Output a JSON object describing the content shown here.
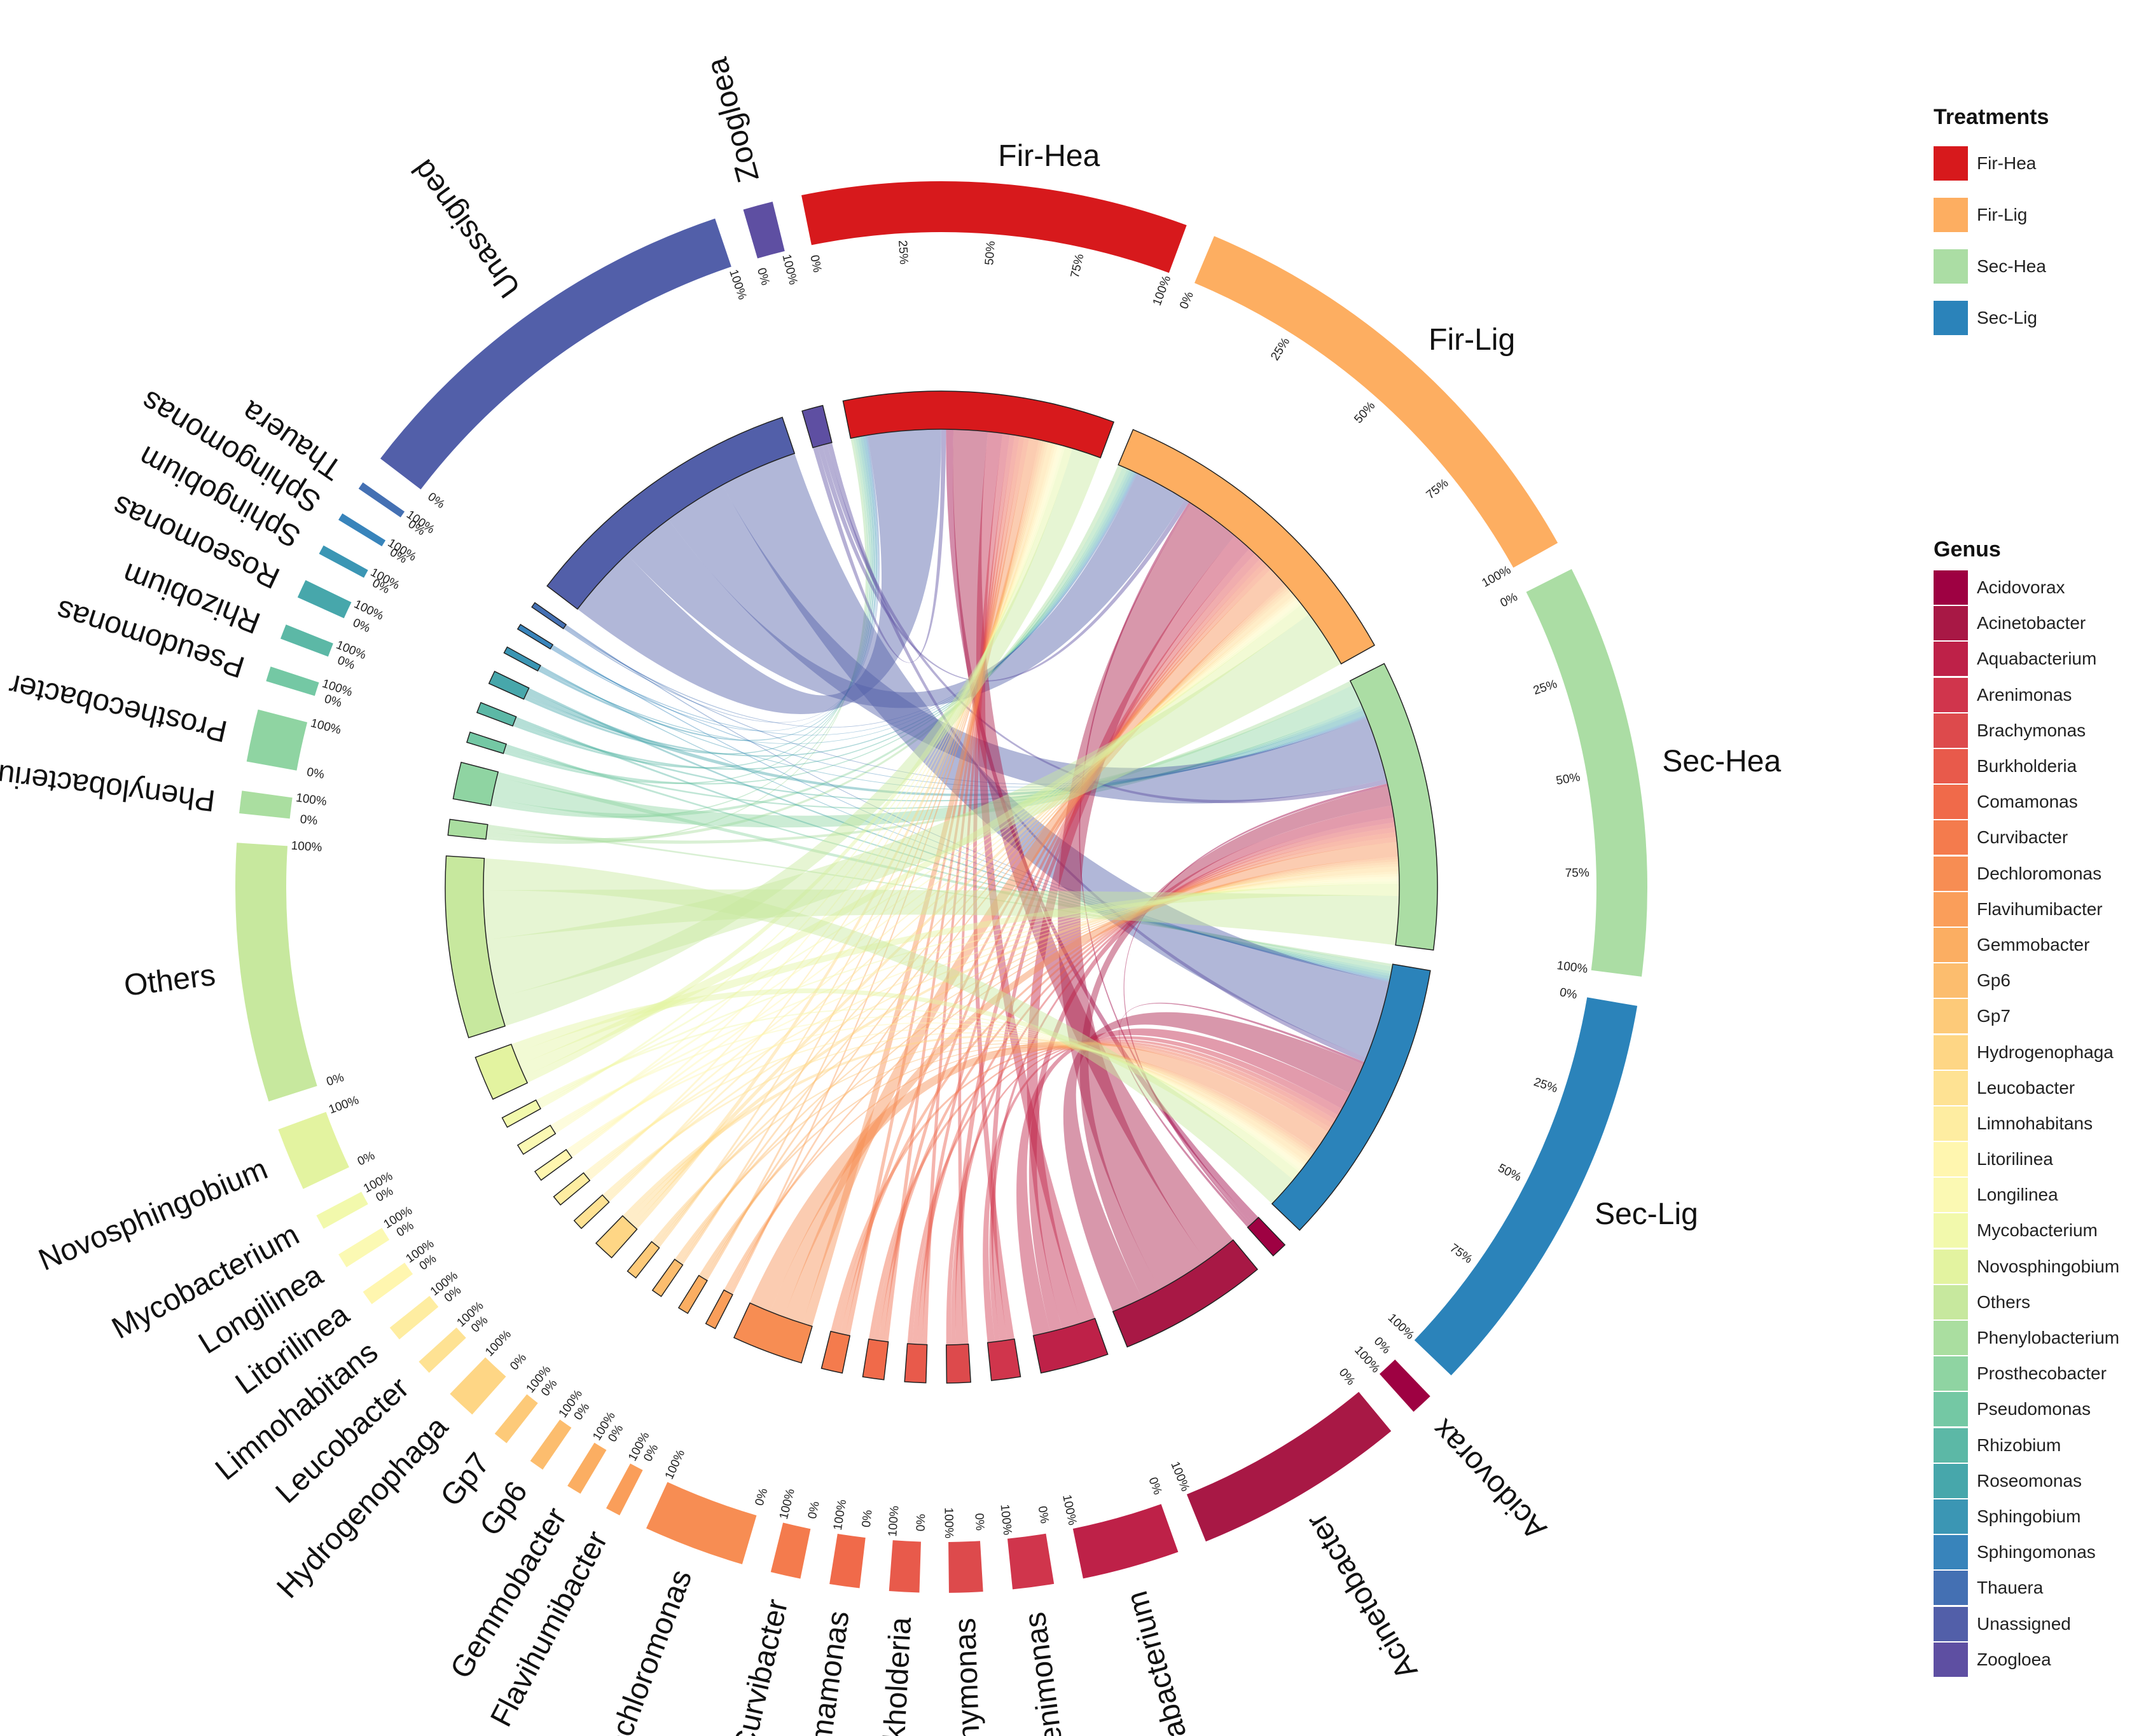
{
  "chart_data": {
    "type": "chord",
    "title": "",
    "tick_labels": [
      "0%",
      "25%",
      "50%",
      "75%",
      "100%"
    ],
    "genera": [
      {
        "name": "Acidovorax",
        "color": "#9e0142",
        "Fir-Hea": 0.3,
        "Fir-Lig": 0.1,
        "Sec-Hea": 0.1,
        "Sec-Lig": 0.1
      },
      {
        "name": "Acinetobacter",
        "color": "#a81845",
        "Fir-Hea": 1.4,
        "Fir-Lig": 2.2,
        "Sec-Hea": 0.8,
        "Sec-Lig": 1.3
      },
      {
        "name": "Aquabacterium",
        "color": "#be2148",
        "Fir-Hea": 0.6,
        "Fir-Lig": 0.8,
        "Sec-Hea": 0.5,
        "Sec-Lig": 0.7
      },
      {
        "name": "Arenimonas",
        "color": "#d0354c",
        "Fir-Hea": 0.3,
        "Fir-Lig": 0.3,
        "Sec-Hea": 0.2,
        "Sec-Lig": 0.3
      },
      {
        "name": "Brachymonas",
        "color": "#dd4a4c",
        "Fir-Hea": 0.2,
        "Fir-Lig": 0.3,
        "Sec-Hea": 0.2,
        "Sec-Lig": 0.2
      },
      {
        "name": "Burkholderia",
        "color": "#e85a4b",
        "Fir-Hea": 0.2,
        "Fir-Lig": 0.2,
        "Sec-Hea": 0.2,
        "Sec-Lig": 0.2
      },
      {
        "name": "Comamonas",
        "color": "#f06a4a",
        "Fir-Hea": 0.2,
        "Fir-Lig": 0.2,
        "Sec-Hea": 0.2,
        "Sec-Lig": 0.2
      },
      {
        "name": "Curvibacter",
        "color": "#f47b4d",
        "Fir-Hea": 0.2,
        "Fir-Lig": 0.2,
        "Sec-Hea": 0.2,
        "Sec-Lig": 0.2
      },
      {
        "name": "Dechloromonas",
        "color": "#f78d53",
        "Fir-Hea": 0.4,
        "Fir-Lig": 0.8,
        "Sec-Hea": 0.6,
        "Sec-Lig": 0.9
      },
      {
        "name": "Flavihumibacter",
        "color": "#fa9e5a",
        "Fir-Hea": 0.1,
        "Fir-Lig": 0.1,
        "Sec-Hea": 0.1,
        "Sec-Lig": 0.1
      },
      {
        "name": "Gemmobacter",
        "color": "#fbae62",
        "Fir-Hea": 0.1,
        "Fir-Lig": 0.1,
        "Sec-Hea": 0.1,
        "Sec-Lig": 0.1
      },
      {
        "name": "Gp6",
        "color": "#fcbd6e",
        "Fir-Hea": 0.1,
        "Fir-Lig": 0.1,
        "Sec-Hea": 0.1,
        "Sec-Lig": 0.1
      },
      {
        "name": "Gp7",
        "color": "#fdca79",
        "Fir-Hea": 0.1,
        "Fir-Lig": 0.1,
        "Sec-Hea": 0.1,
        "Sec-Lig": 0.1
      },
      {
        "name": "Hydrogenophaga",
        "color": "#fed685",
        "Fir-Hea": 0.2,
        "Fir-Lig": 0.2,
        "Sec-Hea": 0.2,
        "Sec-Lig": 0.2
      },
      {
        "name": "Leucobacter",
        "color": "#fee293",
        "Fir-Hea": 0.1,
        "Fir-Lig": 0.1,
        "Sec-Hea": 0.1,
        "Sec-Lig": 0.1
      },
      {
        "name": "Limnohabitans",
        "color": "#feeda1",
        "Fir-Hea": 0.1,
        "Fir-Lig": 0.1,
        "Sec-Hea": 0.1,
        "Sec-Lig": 0.1
      },
      {
        "name": "Litorilinea",
        "color": "#fff6af",
        "Fir-Hea": 0.1,
        "Fir-Lig": 0.1,
        "Sec-Hea": 0.1,
        "Sec-Lig": 0.1
      },
      {
        "name": "Longilinea",
        "color": "#fbf9b3",
        "Fir-Hea": 0.1,
        "Fir-Lig": 0.1,
        "Sec-Hea": 0.1,
        "Sec-Lig": 0.1
      },
      {
        "name": "Mycobacterium",
        "color": "#f2f9ac",
        "Fir-Hea": 0.1,
        "Fir-Lig": 0.1,
        "Sec-Hea": 0.1,
        "Sec-Lig": 0.1
      },
      {
        "name": "Novosphingobium",
        "color": "#e3f3a0",
        "Fir-Hea": 0.3,
        "Fir-Lig": 0.5,
        "Sec-Hea": 0.5,
        "Sec-Lig": 0.4
      },
      {
        "name": "Others",
        "color": "#c7e89e",
        "Fir-Hea": 1.2,
        "Fir-Lig": 2.4,
        "Sec-Hea": 2.0,
        "Sec-Lig": 1.3
      },
      {
        "name": "Phenylobacterium",
        "color": "#aadea0",
        "Fir-Hea": 0.1,
        "Fir-Lig": 0.2,
        "Sec-Hea": 0.2,
        "Sec-Lig": 0.1
      },
      {
        "name": "Prosthecobacter",
        "color": "#8fd4a2",
        "Fir-Hea": 0.1,
        "Fir-Lig": 0.2,
        "Sec-Hea": 0.9,
        "Sec-Lig": 0.2
      },
      {
        "name": "Pseudomonas",
        "color": "#74c8a4",
        "Fir-Hea": 0.1,
        "Fir-Lig": 0.1,
        "Sec-Hea": 0.1,
        "Sec-Lig": 0.1
      },
      {
        "name": "Rhizobium",
        "color": "#5cb8a6",
        "Fir-Hea": 0.1,
        "Fir-Lig": 0.1,
        "Sec-Hea": 0.1,
        "Sec-Lig": 0.1
      },
      {
        "name": "Roseomonas",
        "color": "#47a7ab",
        "Fir-Hea": 0.1,
        "Fir-Lig": 0.1,
        "Sec-Hea": 0.2,
        "Sec-Lig": 0.1
      },
      {
        "name": "Sphingobium",
        "color": "#3b96b4",
        "Fir-Hea": 0.1,
        "Fir-Lig": 0.05,
        "Sec-Hea": 0.05,
        "Sec-Lig": 0.05
      },
      {
        "name": "Sphingomonas",
        "color": "#3884bb",
        "Fir-Hea": 0.05,
        "Fir-Lig": 0.05,
        "Sec-Hea": 0.05,
        "Sec-Lig": 0.05
      },
      {
        "name": "Thauera",
        "color": "#4470b3",
        "Fir-Hea": 0.05,
        "Fir-Lig": 0.05,
        "Sec-Hea": 0.05,
        "Sec-Lig": 0.05
      },
      {
        "name": "Unassigned",
        "color": "#525fa9",
        "Fir-Hea": 3.0,
        "Fir-Lig": 2.2,
        "Sec-Hea": 2.6,
        "Sec-Lig": 3.2
      },
      {
        "name": "Zoogloea",
        "color": "#5e4fa2",
        "Fir-Hea": 0.2,
        "Fir-Lig": 0.2,
        "Sec-Hea": 0.2,
        "Sec-Lig": 0.2
      }
    ],
    "treatments": [
      {
        "name": "Fir-Hea",
        "color": "#d7191c"
      },
      {
        "name": "Fir-Lig",
        "color": "#fdae61"
      },
      {
        "name": "Sec-Hea",
        "color": "#abdda4"
      },
      {
        "name": "Sec-Lig",
        "color": "#2b83ba"
      }
    ]
  },
  "legend": {
    "treatments_title": "Treatments",
    "treatments": [
      {
        "label": "Fir-Hea",
        "color": "#d7191c"
      },
      {
        "label": "Fir-Lig",
        "color": "#fdae61"
      },
      {
        "label": "Sec-Hea",
        "color": "#abdda4"
      },
      {
        "label": "Sec-Lig",
        "color": "#2b83ba"
      }
    ],
    "genus_title": "Genus",
    "genera": [
      {
        "label": "Acidovorax",
        "color": "#9e0142"
      },
      {
        "label": "Acinetobacter",
        "color": "#a81845"
      },
      {
        "label": "Aquabacterium",
        "color": "#be2148"
      },
      {
        "label": "Arenimonas",
        "color": "#d0354c"
      },
      {
        "label": "Brachymonas",
        "color": "#dd4a4c"
      },
      {
        "label": "Burkholderia",
        "color": "#e85a4b"
      },
      {
        "label": "Comamonas",
        "color": "#f06a4a"
      },
      {
        "label": "Curvibacter",
        "color": "#f47b4d"
      },
      {
        "label": "Dechloromonas",
        "color": "#f78d53"
      },
      {
        "label": "Flavihumibacter",
        "color": "#fa9e5a"
      },
      {
        "label": "Gemmobacter",
        "color": "#fbae62"
      },
      {
        "label": "Gp6",
        "color": "#fcbd6e"
      },
      {
        "label": "Gp7",
        "color": "#fdca79"
      },
      {
        "label": "Hydrogenophaga",
        "color": "#fed685"
      },
      {
        "label": "Leucobacter",
        "color": "#fee293"
      },
      {
        "label": "Limnohabitans",
        "color": "#feeda1"
      },
      {
        "label": "Litorilinea",
        "color": "#fff6af"
      },
      {
        "label": "Longilinea",
        "color": "#fbf9b3"
      },
      {
        "label": "Mycobacterium",
        "color": "#f2f9ac"
      },
      {
        "label": "Novosphingobium",
        "color": "#e3f3a0"
      },
      {
        "label": "Others",
        "color": "#c7e89e"
      },
      {
        "label": "Phenylobacterium",
        "color": "#aadea0"
      },
      {
        "label": "Prosthecobacter",
        "color": "#8fd4a2"
      },
      {
        "label": "Pseudomonas",
        "color": "#74c8a4"
      },
      {
        "label": "Rhizobium",
        "color": "#5cb8a6"
      },
      {
        "label": "Roseomonas",
        "color": "#47a7ab"
      },
      {
        "label": "Sphingobium",
        "color": "#3b96b4"
      },
      {
        "label": "Sphingomonas",
        "color": "#3884bb"
      },
      {
        "label": "Thauera",
        "color": "#4470b3"
      },
      {
        "label": "Unassigned",
        "color": "#525fa9"
      },
      {
        "label": "Zoogloea",
        "color": "#5e4fa2"
      }
    ]
  }
}
